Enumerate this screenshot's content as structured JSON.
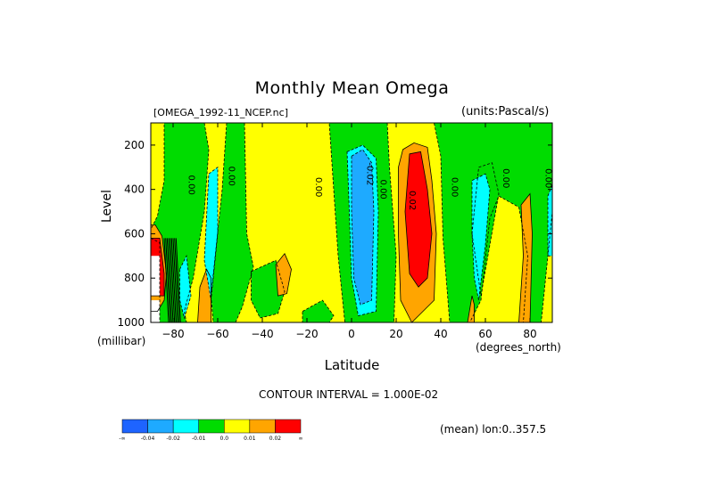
{
  "chart_data": {
    "type": "heatmap",
    "title": "Monthly Mean Omega",
    "subtitle_left": "[OMEGA_1992-11_NCEP.nc]",
    "subtitle_right": "(units:Pascal/s)",
    "xlabel": "Latitude",
    "x_units": "(degrees_north)",
    "ylabel": "Level",
    "y_units": "(millibar)",
    "xlim": [
      -90,
      90
    ],
    "ylim": [
      1000,
      100
    ],
    "y_reversed": true,
    "grid": false,
    "x_ticks": [
      -80,
      -60,
      -40,
      -20,
      0,
      20,
      40,
      60,
      80
    ],
    "y_ticks": [
      200,
      400,
      600,
      800,
      1000
    ],
    "contour_interval_text": "CONTOUR INTERVAL = 1.000E-02",
    "averaging_text": "(mean) lon:0..357.5",
    "contour_labels": [
      {
        "text": "0.00",
        "x": -73,
        "y": 380
      },
      {
        "text": "0.00",
        "x": -55,
        "y": 340
      },
      {
        "text": "0.00",
        "x": -16,
        "y": 390
      },
      {
        "text": "-0.02",
        "x": 7,
        "y": 330
      },
      {
        "text": "0.00",
        "x": 13,
        "y": 400
      },
      {
        "text": "0.02",
        "x": 26,
        "y": 450
      },
      {
        "text": "0.00",
        "x": 45,
        "y": 390
      },
      {
        "text": "0.00",
        "x": 68,
        "y": 350
      },
      {
        "text": "0.00",
        "x": 87,
        "y": 350
      }
    ],
    "colorbar": {
      "bins": [
        {
          "color": "#1e64ff",
          "label": "-∞"
        },
        {
          "color": "#1eaaff",
          "label": "-0.04"
        },
        {
          "color": "#00ffff",
          "label": "-0.02"
        },
        {
          "color": "#00dc00",
          "label": "-0.01"
        },
        {
          "color": "#ffff00",
          "label": "0.0"
        },
        {
          "color": "#ffa500",
          "label": "0.01"
        },
        {
          "color": "#ff0000",
          "label": "0.02"
        }
      ],
      "end_label": "∞"
    },
    "regions": [
      {
        "level": "zero_pos",
        "color": "#ffff00",
        "pts": [
          [
            -90,
            100
          ],
          [
            90,
            100
          ],
          [
            90,
            1000
          ],
          [
            -90,
            1000
          ]
        ]
      },
      {
        "level": "neg",
        "color": "#00dc00",
        "pts": [
          [
            -84,
            100
          ],
          [
            -66,
            100
          ],
          [
            -64,
            220
          ],
          [
            -66,
            500
          ],
          [
            -71,
            800
          ],
          [
            -75,
            950
          ],
          [
            -74,
            1000
          ],
          [
            -86,
            1000
          ],
          [
            -86,
            950
          ],
          [
            -86,
            640
          ],
          [
            -90,
            620
          ],
          [
            -90,
            580
          ],
          [
            -87,
            520
          ],
          [
            -84,
            360
          ]
        ]
      },
      {
        "level": "neg",
        "color": "#00dc00",
        "pts": [
          [
            -56,
            100
          ],
          [
            -48,
            100
          ],
          [
            -47,
            600
          ],
          [
            -44,
            750
          ],
          [
            -49,
            930
          ],
          [
            -52,
            1000
          ],
          [
            -62,
            1000
          ],
          [
            -63,
            880
          ],
          [
            -58,
            400
          ]
        ]
      },
      {
        "level": "neg",
        "color": "#00dc00",
        "pts": [
          [
            -45,
            770
          ],
          [
            -34,
            720
          ],
          [
            -30,
            860
          ],
          [
            -33,
            960
          ],
          [
            -41,
            980
          ],
          [
            -45,
            900
          ]
        ]
      },
      {
        "level": "neg",
        "color": "#00dc00",
        "pts": [
          [
            -22,
            950
          ],
          [
            -13,
            900
          ],
          [
            -8,
            970
          ],
          [
            -10,
            1000
          ],
          [
            -22,
            1000
          ]
        ]
      },
      {
        "level": "neg",
        "color": "#00dc00",
        "pts": [
          [
            -10,
            100
          ],
          [
            16,
            100
          ],
          [
            17,
            300
          ],
          [
            20,
            700
          ],
          [
            19,
            1000
          ],
          [
            -3,
            1000
          ],
          [
            -6,
            700
          ],
          [
            -8,
            400
          ]
        ]
      },
      {
        "level": "neg",
        "color": "#00dc00",
        "pts": [
          [
            37,
            100
          ],
          [
            90,
            100
          ],
          [
            90,
            500
          ],
          [
            85,
            1000
          ],
          [
            77,
            1000
          ],
          [
            79,
            700
          ],
          [
            75,
            480
          ],
          [
            66,
            430
          ],
          [
            62,
            530
          ],
          [
            58,
            900
          ],
          [
            53,
            1000
          ],
          [
            44,
            1000
          ],
          [
            41,
            620
          ],
          [
            40,
            250
          ]
        ]
      },
      {
        "level": "neg",
        "color": "#00dc00",
        "pts": [
          [
            54,
            600
          ],
          [
            57,
            300
          ],
          [
            63,
            280
          ],
          [
            66,
            420
          ],
          [
            58,
            880
          ]
        ]
      },
      {
        "level": "pos",
        "color": "#ffa500",
        "pts": [
          [
            -88,
            560
          ],
          [
            -85,
            610
          ],
          [
            -83,
            780
          ],
          [
            -84,
            900
          ],
          [
            -87,
            950
          ],
          [
            -90,
            950
          ],
          [
            -90,
            560
          ]
        ]
      },
      {
        "level": "pos",
        "color": "#ffa500",
        "pts": [
          [
            -68,
            840
          ],
          [
            -65,
            760
          ],
          [
            -63,
            800
          ],
          [
            -63,
            1000
          ],
          [
            -69,
            1000
          ]
        ]
      },
      {
        "level": "pos",
        "color": "#ffa500",
        "pts": [
          [
            -34,
            740
          ],
          [
            -30,
            690
          ],
          [
            -27,
            760
          ],
          [
            -29,
            870
          ],
          [
            -33,
            880
          ]
        ]
      },
      {
        "level": "pos",
        "color": "#ffa500",
        "pts": [
          [
            23,
            220
          ],
          [
            28,
            190
          ],
          [
            34,
            210
          ],
          [
            36,
            360
          ],
          [
            38,
            600
          ],
          [
            37,
            900
          ],
          [
            27,
            1000
          ],
          [
            22,
            900
          ],
          [
            21,
            600
          ],
          [
            21,
            300
          ]
        ]
      },
      {
        "level": "pos",
        "color": "#ffa500",
        "pts": [
          [
            76,
            470
          ],
          [
            80,
            420
          ],
          [
            81,
            600
          ],
          [
            80,
            1000
          ],
          [
            75,
            1000
          ],
          [
            77,
            700
          ]
        ]
      },
      {
        "level": "pos",
        "color": "#ffa500",
        "pts": [
          [
            54,
            880
          ],
          [
            55,
            920
          ],
          [
            55,
            1000
          ],
          [
            52,
            1000
          ]
        ]
      },
      {
        "level": "strong_pos",
        "color": "#ff0000",
        "pts": [
          [
            -90,
            620
          ],
          [
            -86,
            620
          ],
          [
            -84,
            780
          ],
          [
            -84,
            880
          ],
          [
            -90,
            880
          ]
        ]
      },
      {
        "level": "strong_pos",
        "color": "#ff0000",
        "pts": [
          [
            26,
            240
          ],
          [
            31,
            230
          ],
          [
            34,
            400
          ],
          [
            36,
            600
          ],
          [
            34,
            800
          ],
          [
            30,
            840
          ],
          [
            26,
            780
          ],
          [
            24,
            500
          ]
        ]
      },
      {
        "level": "strong_neg",
        "color": "#00ffff",
        "pts": [
          [
            -64,
            330
          ],
          [
            -60,
            300
          ],
          [
            -60,
            600
          ],
          [
            -63,
            900
          ],
          [
            -66,
            720
          ]
        ]
      },
      {
        "level": "strong_neg",
        "color": "#00ffff",
        "pts": [
          [
            -77,
            760
          ],
          [
            -74,
            700
          ],
          [
            -72,
            880
          ],
          [
            -75,
            980
          ],
          [
            -77,
            900
          ]
        ]
      },
      {
        "level": "strong_neg",
        "color": "#00ffff",
        "pts": [
          [
            -2,
            230
          ],
          [
            5,
            200
          ],
          [
            11,
            260
          ],
          [
            12,
            500
          ],
          [
            11,
            950
          ],
          [
            3,
            970
          ],
          [
            0,
            800
          ],
          [
            -1,
            500
          ]
        ]
      },
      {
        "level": "strong_neg",
        "color": "#00ffff",
        "pts": [
          [
            54,
            360
          ],
          [
            60,
            330
          ],
          [
            62,
            400
          ],
          [
            60,
            650
          ],
          [
            57,
            900
          ],
          [
            55,
            800
          ],
          [
            54,
            600
          ]
        ]
      },
      {
        "level": "strong_neg",
        "color": "#00ffff",
        "pts": [
          [
            88,
            430
          ],
          [
            90,
            380
          ],
          [
            90,
            700
          ],
          [
            88,
            700
          ]
        ]
      },
      {
        "level": "very_neg",
        "color": "#1eaaff",
        "pts": [
          [
            0,
            250
          ],
          [
            5,
            220
          ],
          [
            9,
            280
          ],
          [
            10,
            500
          ],
          [
            9,
            900
          ],
          [
            4,
            920
          ],
          [
            1,
            800
          ],
          [
            0,
            500
          ]
        ]
      },
      {
        "level": "missing",
        "color": "#ffffff",
        "pts": [
          [
            -90,
            700
          ],
          [
            -86,
            700
          ],
          [
            -86,
            880
          ],
          [
            -90,
            880
          ]
        ]
      },
      {
        "level": "missing",
        "color": "#ffffff",
        "pts": [
          [
            -90,
            900
          ],
          [
            -86,
            900
          ],
          [
            -86,
            1000
          ],
          [
            -90,
            1000
          ]
        ]
      }
    ],
    "dense_contour_zone": {
      "x": [
        -84,
        -78
      ],
      "y": [
        620,
        1000
      ]
    }
  }
}
